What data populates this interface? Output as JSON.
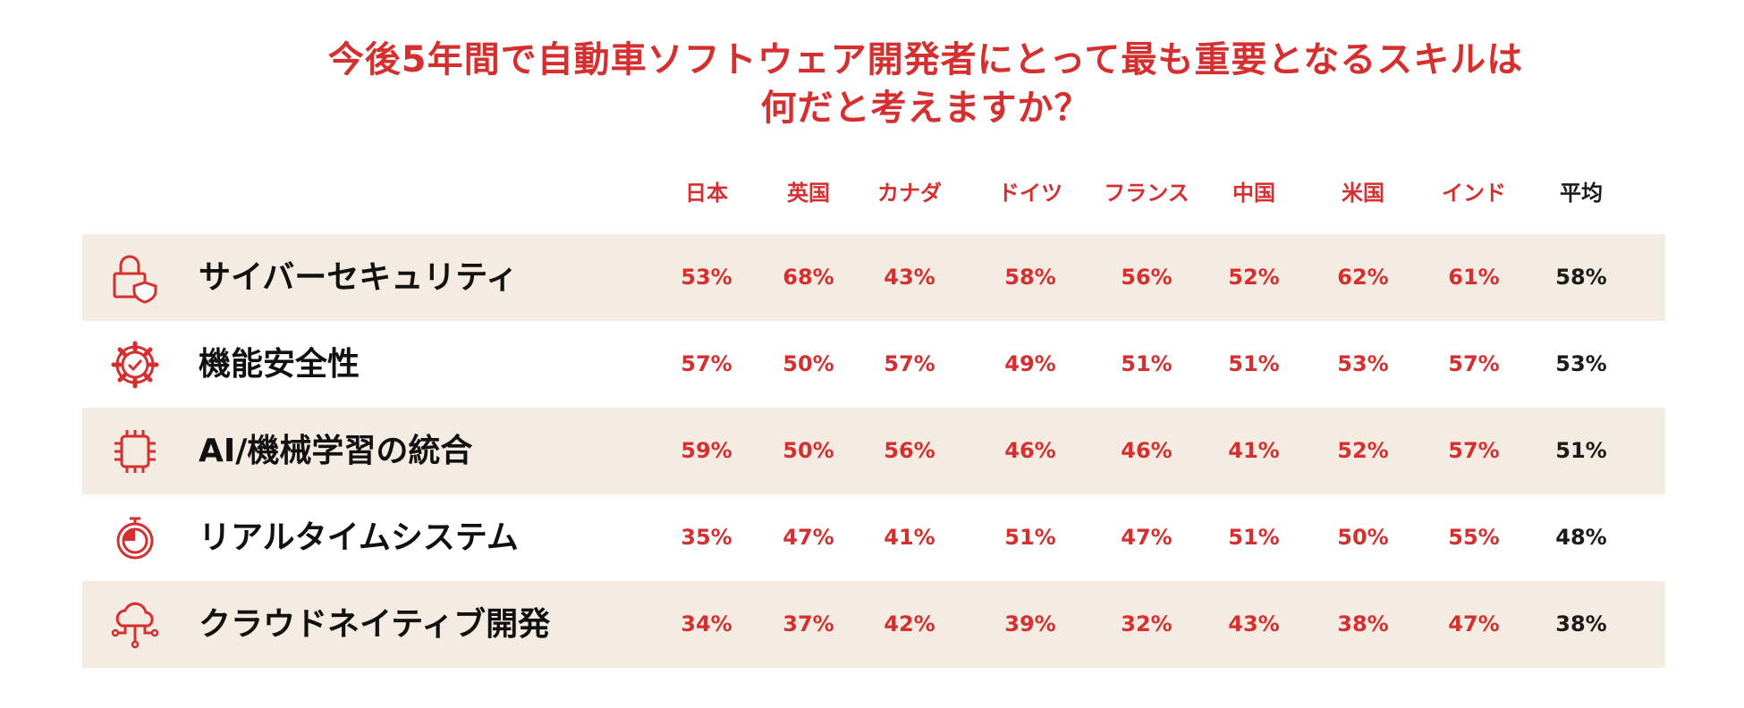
{
  "chart_data": {
    "type": "table",
    "title_lines": [
      "今後5年間で自動車ソフトウェア開発者にとって最も重要となるスキルは",
      "何だと考えますか？"
    ],
    "columns": [
      "日本",
      "英国",
      "カナダ",
      "ドイツ",
      "フランス",
      "中国",
      "米国",
      "インド",
      "平均"
    ],
    "rows": [
      {
        "label": "サイバーセキュリティ",
        "icon": "lock-shield-icon",
        "values": [
          "53%",
          "68%",
          "43%",
          "58%",
          "56%",
          "52%",
          "62%",
          "61%",
          "58%"
        ]
      },
      {
        "label": "機能安全性",
        "icon": "gear-check-icon",
        "values": [
          "57%",
          "50%",
          "57%",
          "49%",
          "51%",
          "51%",
          "53%",
          "57%",
          "53%"
        ]
      },
      {
        "label": "AI/機械学習の統合",
        "icon": "chip-icon",
        "values": [
          "59%",
          "50%",
          "56%",
          "46%",
          "46%",
          "41%",
          "52%",
          "57%",
          "51%"
        ]
      },
      {
        "label": "リアルタイムシステム",
        "icon": "stopwatch-icon",
        "values": [
          "35%",
          "47%",
          "41%",
          "51%",
          "47%",
          "51%",
          "50%",
          "55%",
          "48%"
        ]
      },
      {
        "label": "クラウドネイティブ開発",
        "icon": "cloud-network-icon",
        "values": [
          "34%",
          "37%",
          "42%",
          "39%",
          "32%",
          "43%",
          "38%",
          "47%",
          "38%"
        ]
      }
    ],
    "colors": {
      "accent": "#d5302f",
      "average": "#1b1b1b",
      "row_shade": "#f4ece2"
    }
  }
}
